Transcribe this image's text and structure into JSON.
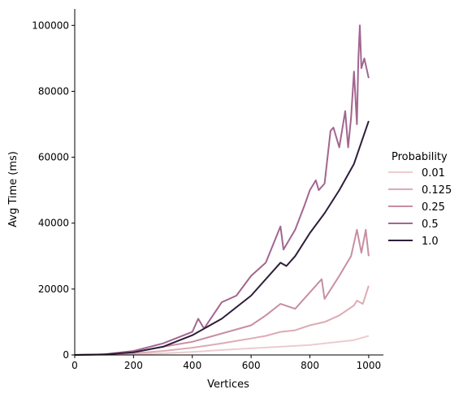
{
  "chart_data": {
    "type": "line",
    "title": "",
    "xlabel": "Vertices",
    "ylabel": "Avg Time (ms)",
    "xlim": [
      0,
      1050
    ],
    "ylim": [
      0,
      105000
    ],
    "x_ticks": [
      0,
      200,
      400,
      600,
      800,
      1000
    ],
    "y_ticks": [
      0,
      20000,
      40000,
      60000,
      80000,
      100000
    ],
    "grid": false,
    "legend": {
      "title": "Probability",
      "placement": "center-right"
    },
    "series": [
      {
        "name": "0.01",
        "color": "#ecccd0",
        "x": [
          0,
          100,
          200,
          300,
          400,
          500,
          600,
          700,
          800,
          900,
          950,
          1000
        ],
        "y": [
          0,
          50,
          200,
          500,
          900,
          1500,
          2000,
          2500,
          3000,
          4000,
          4500,
          5800
        ]
      },
      {
        "name": "0.125",
        "color": "#ddabb4",
        "x": [
          0,
          100,
          200,
          300,
          400,
          500,
          600,
          650,
          700,
          750,
          800,
          850,
          900,
          950,
          960,
          980,
          1000
        ],
        "y": [
          0,
          100,
          500,
          1200,
          2200,
          3500,
          5000,
          5800,
          7000,
          7500,
          9000,
          10000,
          12000,
          15000,
          16500,
          15500,
          21000
        ]
      },
      {
        "name": "0.25",
        "color": "#c88ea2",
        "x": [
          0,
          100,
          200,
          300,
          400,
          500,
          600,
          650,
          700,
          750,
          800,
          840,
          850,
          900,
          940,
          960,
          975,
          990,
          1000
        ],
        "y": [
          0,
          150,
          900,
          2500,
          4000,
          6500,
          9000,
          12000,
          15500,
          14000,
          19000,
          23000,
          17000,
          24000,
          30000,
          38000,
          31000,
          38000,
          30000
        ]
      },
      {
        "name": "0.5",
        "color": "#a2668f",
        "x": [
          0,
          100,
          200,
          300,
          400,
          420,
          440,
          500,
          550,
          600,
          650,
          700,
          710,
          750,
          780,
          800,
          820,
          830,
          850,
          870,
          880,
          900,
          920,
          930,
          940,
          950,
          960,
          965,
          970,
          975,
          985,
          1000
        ],
        "y": [
          0,
          200,
          1200,
          3500,
          7000,
          11000,
          8000,
          16000,
          18000,
          24000,
          28000,
          39000,
          32000,
          38000,
          45000,
          50000,
          53000,
          50000,
          52000,
          68000,
          69000,
          63000,
          74000,
          63000,
          72000,
          86000,
          70000,
          90000,
          100000,
          87000,
          90000,
          84000
        ]
      },
      {
        "name": "1.0",
        "color": "#2e1e3b",
        "x": [
          0,
          100,
          200,
          300,
          400,
          500,
          600,
          700,
          720,
          750,
          800,
          850,
          900,
          950,
          1000
        ],
        "y": [
          0,
          150,
          800,
          2500,
          6000,
          11000,
          18000,
          28000,
          27000,
          30000,
          37000,
          43000,
          50000,
          58000,
          71000
        ]
      }
    ]
  }
}
